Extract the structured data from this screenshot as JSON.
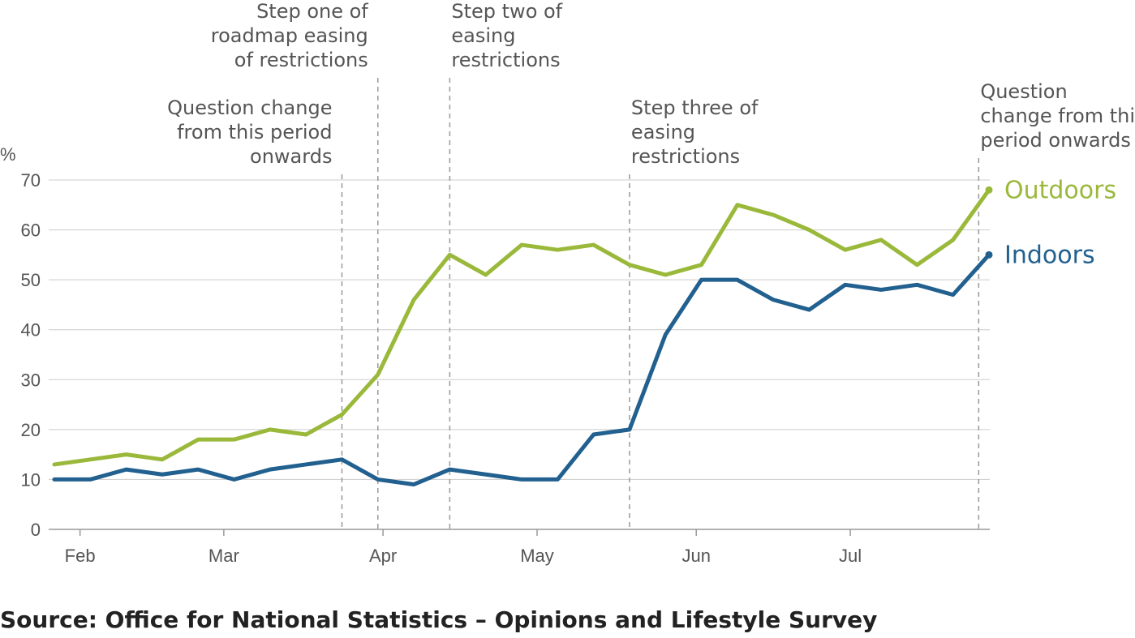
{
  "chart_data": {
    "type": "line",
    "ylabel": "%",
    "ylim": [
      0,
      70
    ],
    "y_ticks": [
      0,
      10,
      20,
      30,
      40,
      50,
      60,
      70
    ],
    "x_range": [
      "2021-01-27",
      "2021-07-28"
    ],
    "x_ticks": [
      {
        "label": "Feb",
        "date": "2021-02-01"
      },
      {
        "label": "Mar",
        "date": "2021-03-01"
      },
      {
        "label": "Apr",
        "date": "2021-04-01"
      },
      {
        "label": "May",
        "date": "2021-05-01"
      },
      {
        "label": "Jun",
        "date": "2021-06-01"
      },
      {
        "label": "Jul",
        "date": "2021-07-01"
      }
    ],
    "x": [
      "2021-01-27",
      "2021-02-03",
      "2021-02-10",
      "2021-02-17",
      "2021-02-24",
      "2021-03-03",
      "2021-03-10",
      "2021-03-17",
      "2021-03-24",
      "2021-03-31",
      "2021-04-07",
      "2021-04-14",
      "2021-04-21",
      "2021-04-28",
      "2021-05-05",
      "2021-05-12",
      "2021-05-19",
      "2021-05-26",
      "2021-06-02",
      "2021-06-09",
      "2021-06-16",
      "2021-06-23",
      "2021-06-30",
      "2021-07-07",
      "2021-07-14",
      "2021-07-21",
      "2021-07-28"
    ],
    "series": [
      {
        "name": "Outdoors",
        "color": "#9ab93b",
        "values": [
          13,
          14,
          15,
          14,
          18,
          18,
          20,
          19,
          23,
          31,
          46,
          55,
          51,
          57,
          56,
          57,
          53,
          51,
          53,
          65,
          63,
          60,
          56,
          58,
          53,
          58,
          68
        ]
      },
      {
        "name": "Indoors",
        "color": "#21608f",
        "values": [
          10,
          10,
          12,
          11,
          12,
          10,
          12,
          13,
          14,
          10,
          9,
          12,
          11,
          10,
          10,
          19,
          20,
          39,
          50,
          50,
          46,
          44,
          49,
          48,
          49,
          47,
          55
        ]
      }
    ],
    "grid": true,
    "annotations": [
      {
        "date": "2021-03-24",
        "lines": [
          "Question change",
          "from this period",
          "onwards"
        ]
      },
      {
        "date": "2021-03-31",
        "lines": [
          "Step one of",
          "roadmap easing",
          "of restrictions"
        ]
      },
      {
        "date": "2021-04-14",
        "lines": [
          "Step two of",
          "easing",
          "restrictions"
        ]
      },
      {
        "date": "2021-05-19",
        "lines": [
          "Step three of",
          "easing",
          "restrictions"
        ]
      },
      {
        "date": "2021-07-26",
        "lines": [
          "Question",
          "change from thi",
          "period onwards"
        ]
      }
    ]
  },
  "source": "Source: Office for National Statistics – Opinions and Lifestyle Survey"
}
